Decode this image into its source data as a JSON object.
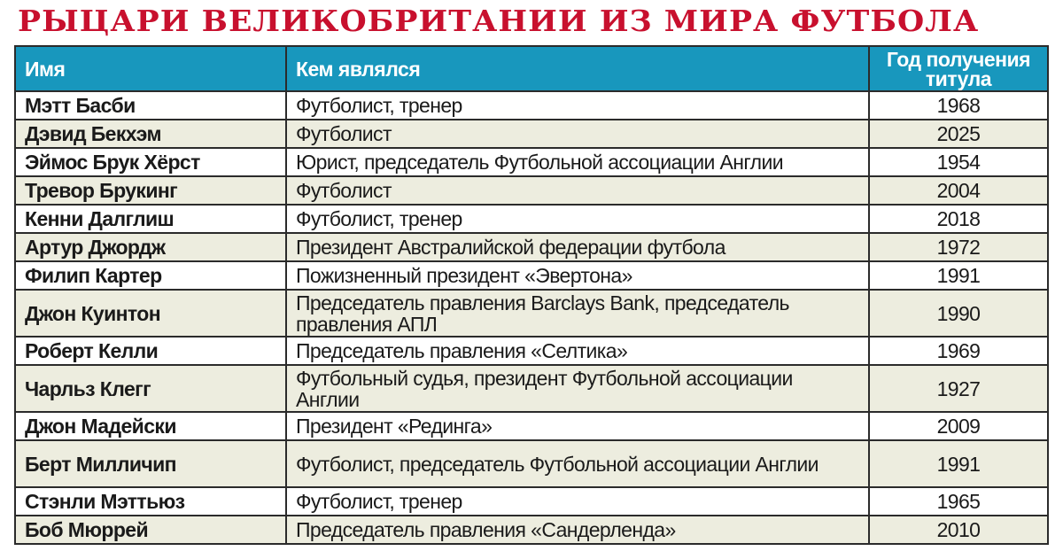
{
  "title": "РЫЦАРИ ВЕЛИКОБРИТАНИИ ИЗ МИРА ФУТБОЛА",
  "colors": {
    "title": "#c8102e",
    "header": "#1897bd",
    "alt_row": "#ededdf"
  },
  "table": {
    "headers": [
      "Имя",
      "Кем являлся",
      "Год получения титула"
    ],
    "rows": [
      {
        "name": "Мэтт Басби",
        "role": "Футболист, тренер",
        "year": "1968"
      },
      {
        "name": "Дэвид Бекхэм",
        "role": "Футболист",
        "year": "2025"
      },
      {
        "name": "Эймос Брук Хёрст",
        "role": "Юрист, председатель Футбольной ассоциации Англии",
        "year": "1954"
      },
      {
        "name": "Тревор Брукинг",
        "role": "Футболист",
        "year": "2004"
      },
      {
        "name": "Кенни Далглиш",
        "role": "Футболист, тренер",
        "year": "2018"
      },
      {
        "name": "Артур Джордж",
        "role": "Президент Австралийской федерации футбола",
        "year": "1972"
      },
      {
        "name": "Филип Картер",
        "role": "Пожизненный президент «Эвертона»",
        "year": "1991"
      },
      {
        "name": "Джон Куинтон",
        "role": "Председатель правления Barclays Bank, председатель правления АПЛ",
        "year": "1990"
      },
      {
        "name": "Роберт Келли",
        "role": "Председатель правления «Селтика»",
        "year": "1969"
      },
      {
        "name": "Чарльз Клегг",
        "role": "Футбольный судья, президент Футбольной ассоциации Англии",
        "year": "1927"
      },
      {
        "name": "Джон Мадейски",
        "role": "Президент «Рединга»",
        "year": "2009"
      },
      {
        "name": "Берт Милличип",
        "role": "Футболист, председатель Футбольной ассоциации Англии",
        "year": "1991"
      },
      {
        "name": "Стэнли Мэттьюз",
        "role": "Футболист, тренер",
        "year": "1965"
      },
      {
        "name": "Боб Мюррей",
        "role": "Председатель правления «Сандерленда»",
        "year": "2010"
      }
    ]
  }
}
